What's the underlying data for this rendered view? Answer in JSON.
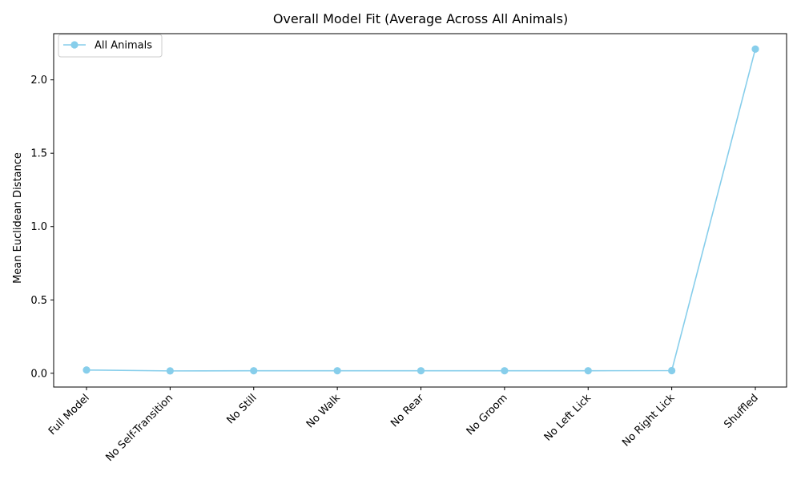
{
  "chart_data": {
    "type": "line",
    "title": "Overall Model Fit (Average Across All Animals)",
    "xlabel": "",
    "ylabel": "Mean Euclidean Distance",
    "categories": [
      "Full Model",
      "No Self-Transition",
      "No Still",
      "No Walk",
      "No Rear",
      "No Groom",
      "No Left Lick",
      "No Right Lick",
      "Shuffled"
    ],
    "series": [
      {
        "name": "All Animals",
        "values": [
          0.022,
          0.016,
          0.017,
          0.017,
          0.017,
          0.017,
          0.017,
          0.018,
          2.21
        ],
        "color": "#87ceeb",
        "marker": "circle"
      }
    ],
    "ylim": [
      -0.094,
      2.315
    ],
    "yticks": [
      0.0,
      0.5,
      1.0,
      1.5,
      2.0
    ],
    "ytick_labels": [
      "0.0",
      "0.5",
      "1.0",
      "1.5",
      "2.0"
    ],
    "grid": false,
    "legend_position": "upper-left"
  }
}
